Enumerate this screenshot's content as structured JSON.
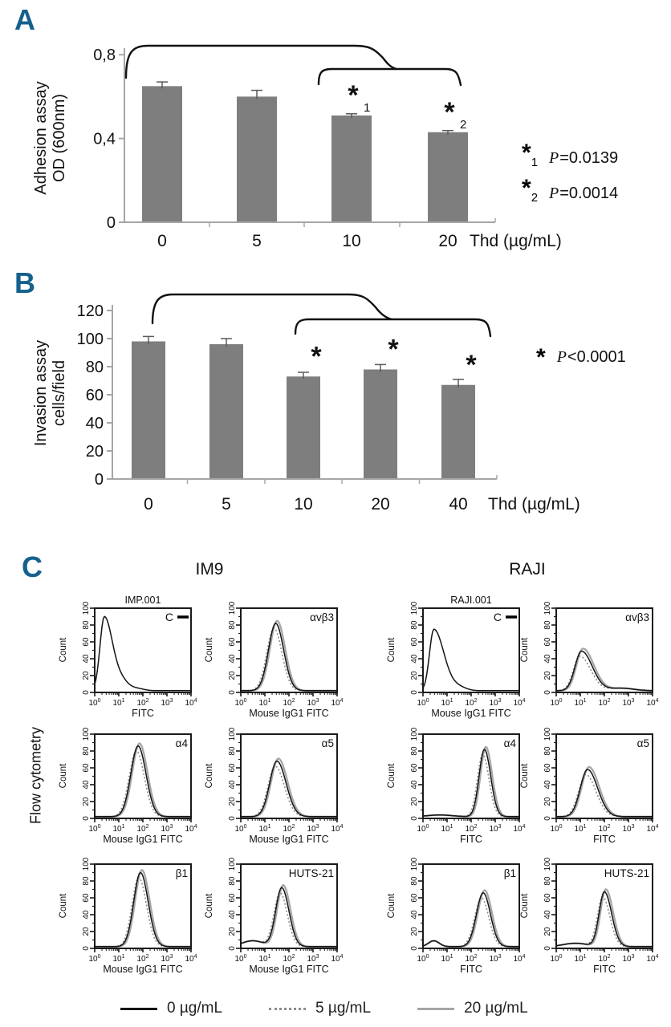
{
  "panels": {
    "a": "A",
    "b": "B",
    "c": "C"
  },
  "colors": {
    "panel_letter": "#15618e",
    "bar_fill": "#7e7e7e",
    "axis": "#a6a6a6",
    "error_bar": "#5a5a5a",
    "bracket": "#111111",
    "flow_box": "#1a1a1a"
  },
  "chart_data": [
    {
      "panel": "A",
      "type": "bar",
      "title": "",
      "ylabel_lines": [
        "Adhesion assay",
        "OD (600nm)"
      ],
      "xlabel": "Thd (µg/mL)",
      "categories": [
        "0",
        "5",
        "10",
        "20"
      ],
      "values": [
        0.65,
        0.6,
        0.51,
        0.43
      ],
      "errors": [
        0.02,
        0.03,
        0.008,
        0.008
      ],
      "ylim": [
        0,
        0.8
      ],
      "yticks": [
        {
          "v": 0,
          "label": "0"
        },
        {
          "v": 0.4,
          "label": "0,4"
        },
        {
          "v": 0.8,
          "label": "0,8"
        }
      ],
      "grid": "off",
      "sig_marks": [
        {
          "bar": 2,
          "symbol": "*",
          "sub": "1"
        },
        {
          "bar": 3,
          "symbol": "*",
          "sub": "2"
        }
      ],
      "legend": [
        {
          "symbol": "*",
          "sub": "1",
          "p": "P",
          "rest": "=0.0139"
        },
        {
          "symbol": "*",
          "sub": "2",
          "p": "P",
          "rest": "=0.0014"
        }
      ]
    },
    {
      "panel": "B",
      "type": "bar",
      "title": "",
      "ylabel_lines": [
        "Invasion assay",
        "cells/field"
      ],
      "xlabel": "Thd (µg/mL)",
      "categories": [
        "0",
        "5",
        "10",
        "20",
        "40"
      ],
      "values": [
        98,
        96,
        73,
        78,
        67
      ],
      "errors": [
        3.5,
        4,
        3,
        3.5,
        4
      ],
      "ylim": [
        0,
        120
      ],
      "yticks": [
        {
          "v": 0,
          "label": "0"
        },
        {
          "v": 20,
          "label": "20"
        },
        {
          "v": 40,
          "label": "40"
        },
        {
          "v": 60,
          "label": "60"
        },
        {
          "v": 80,
          "label": "80"
        },
        {
          "v": 100,
          "label": "100"
        },
        {
          "v": 120,
          "label": "120"
        }
      ],
      "grid": "off",
      "sig_marks": [
        {
          "bar": 2,
          "symbol": "*",
          "sub": ""
        },
        {
          "bar": 3,
          "symbol": "*",
          "sub": ""
        },
        {
          "bar": 4,
          "symbol": "*",
          "sub": ""
        }
      ],
      "legend": [
        {
          "symbol": "*",
          "sub": "",
          "p": "P",
          "rest": "<0.0001"
        }
      ]
    },
    {
      "panel": "C",
      "type": "line",
      "name": "flow-cytometry-histograms",
      "ylabel": "Flow cytometry",
      "groups": [
        "IM9",
        "RAJI"
      ],
      "count_label": "Count",
      "yticks": [
        0,
        20,
        40,
        60,
        80,
        100
      ],
      "ylim": [
        0,
        100
      ],
      "x_exponents": [
        0,
        1,
        2,
        3,
        4
      ],
      "series_legend": [
        {
          "name": "0 µg/mL",
          "color": "#141414",
          "dash": "",
          "width": 1.5,
          "dp": 0,
          "dh": 0
        },
        {
          "name": "5 µg/mL",
          "color": "#8c8c8c",
          "dash": "2 2.6",
          "width": 1.6,
          "dp": -0.07,
          "dh": -6
        },
        {
          "name": "20 µg/mL",
          "color": "#a6a6a6",
          "dash": "",
          "width": 2.3,
          "dp": 0.06,
          "dh": 3
        }
      ],
      "subplots": [
        {
          "group": "IM9",
          "row": 0,
          "col": 0,
          "title": "IMP.001",
          "label": "C",
          "control": true,
          "xlabel": "FITC",
          "peak_log": 0.4,
          "peak_count": 88,
          "sigma_l": 0.18,
          "sigma_r": 0.35,
          "bumps": [
            [
              1.15,
              9,
              0.25
            ],
            [
              1.7,
              3,
              0.3
            ]
          ]
        },
        {
          "group": "IM9",
          "row": 0,
          "col": 1,
          "title": "",
          "label": "αvβ3",
          "control": false,
          "xlabel": "Mouse IgG1 FITC",
          "peak_log": 1.45,
          "peak_count": 80,
          "sigma_l": 0.3,
          "sigma_r": 0.33,
          "bumps": []
        },
        {
          "group": "RAJI",
          "row": 0,
          "col": 2,
          "title": "RAJI.001",
          "label": "C",
          "control": true,
          "xlabel": "Mouse IgG1 FITC",
          "peak_log": 0.45,
          "peak_count": 73,
          "sigma_l": 0.18,
          "sigma_r": 0.42,
          "bumps": [
            [
              1.5,
              4,
              0.3
            ]
          ]
        },
        {
          "group": "RAJI",
          "row": 0,
          "col": 3,
          "title": "",
          "label": "αvβ3",
          "control": false,
          "xlabel": "",
          "peak_log": 1.05,
          "peak_count": 47,
          "sigma_l": 0.27,
          "sigma_r": 0.45,
          "bumps": [
            [
              2.7,
              3,
              0.5
            ]
          ]
        },
        {
          "group": "IM9",
          "row": 1,
          "col": 0,
          "title": "",
          "label": "α4",
          "control": false,
          "xlabel": "Mouse IgG1 FITC",
          "peak_log": 1.8,
          "peak_count": 84,
          "sigma_l": 0.3,
          "sigma_r": 0.33,
          "bumps": []
        },
        {
          "group": "IM9",
          "row": 1,
          "col": 1,
          "title": "",
          "label": "α5",
          "control": false,
          "xlabel": "Mouse IgG1 FITC",
          "peak_log": 1.5,
          "peak_count": 66,
          "sigma_l": 0.3,
          "sigma_r": 0.38,
          "bumps": []
        },
        {
          "group": "RAJI",
          "row": 1,
          "col": 2,
          "title": "",
          "label": "α4",
          "control": false,
          "xlabel": "FITC",
          "peak_log": 2.55,
          "peak_count": 80,
          "sigma_l": 0.22,
          "sigma_r": 0.26,
          "bumps": [
            [
              0.7,
              2,
              0.5
            ]
          ]
        },
        {
          "group": "RAJI",
          "row": 1,
          "col": 3,
          "title": "",
          "label": "α5",
          "control": false,
          "xlabel": "FITC",
          "peak_log": 1.3,
          "peak_count": 56,
          "sigma_l": 0.3,
          "sigma_r": 0.42,
          "bumps": []
        },
        {
          "group": "IM9",
          "row": 2,
          "col": 0,
          "title": "",
          "label": "β1",
          "control": false,
          "xlabel": "Mouse IgG1 FITC",
          "peak_log": 1.9,
          "peak_count": 88,
          "sigma_l": 0.28,
          "sigma_r": 0.32,
          "bumps": []
        },
        {
          "group": "IM9",
          "row": 2,
          "col": 1,
          "title": "",
          "label": "HUTS-21",
          "control": false,
          "xlabel": "Mouse IgG1 FITC",
          "peak_log": 1.7,
          "peak_count": 70,
          "sigma_l": 0.25,
          "sigma_r": 0.3,
          "bumps": [
            [
              0.5,
              7,
              0.45
            ]
          ]
        },
        {
          "group": "RAJI",
          "row": 2,
          "col": 2,
          "title": "",
          "label": "β1",
          "control": false,
          "xlabel": "FITC",
          "peak_log": 2.5,
          "peak_count": 64,
          "sigma_l": 0.28,
          "sigma_r": 0.3,
          "bumps": [
            [
              0.45,
              7,
              0.22
            ]
          ]
        },
        {
          "group": "RAJI",
          "row": 2,
          "col": 3,
          "title": "",
          "label": "HUTS-21",
          "control": false,
          "xlabel": "FITC",
          "peak_log": 2.0,
          "peak_count": 65,
          "sigma_l": 0.22,
          "sigma_r": 0.3,
          "bumps": [
            [
              0.8,
              4,
              0.5
            ]
          ]
        }
      ]
    }
  ]
}
